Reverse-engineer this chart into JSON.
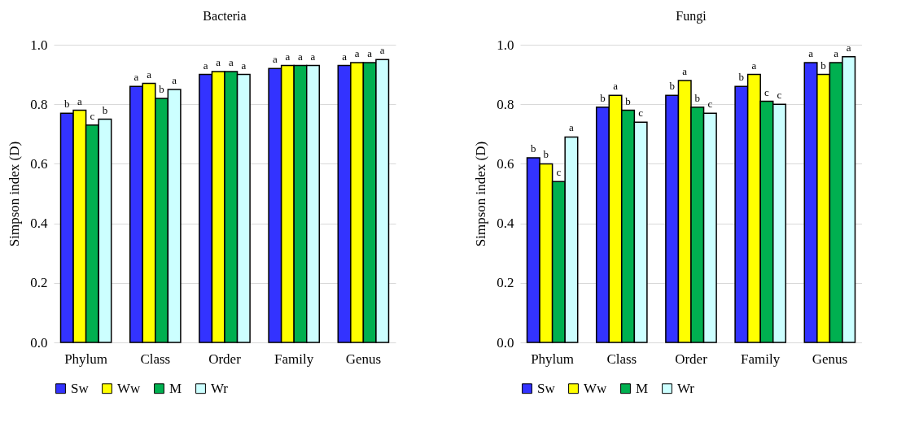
{
  "chart_data": [
    {
      "type": "bar",
      "title": "Bacteria",
      "ylabel": "Simpson index (D)",
      "categories": [
        "Phylum",
        "Class",
        "Order",
        "Family",
        "Genus"
      ],
      "series": [
        {
          "name": "Sw",
          "color": "#3333ff",
          "values": [
            0.77,
            0.86,
            0.9,
            0.92,
            0.93
          ],
          "value_labels": [
            "b",
            "a",
            "a",
            "a",
            "a"
          ]
        },
        {
          "name": "Ww",
          "color": "#ffff00",
          "values": [
            0.78,
            0.87,
            0.91,
            0.93,
            0.94
          ],
          "value_labels": [
            "a",
            "a",
            "a",
            "a",
            "a"
          ]
        },
        {
          "name": "M",
          "color": "#00b050",
          "values": [
            0.73,
            0.82,
            0.91,
            0.93,
            0.94
          ],
          "value_labels": [
            "c",
            "b",
            "a",
            "a",
            "a"
          ]
        },
        {
          "name": "Wr",
          "color": "#ccffff",
          "values": [
            0.75,
            0.85,
            0.9,
            0.93,
            0.95
          ],
          "value_labels": [
            "b",
            "a",
            "a",
            "a",
            "a"
          ]
        }
      ],
      "ylim": [
        0,
        1
      ],
      "yticks": [
        {
          "value": 0,
          "label": "0.0"
        },
        {
          "value": 0.2,
          "label": "0.2"
        },
        {
          "value": 0.4,
          "label": "0.4"
        },
        {
          "value": 0.6,
          "label": "0.6"
        },
        {
          "value": 0.8,
          "label": "0.8"
        },
        {
          "value": 1,
          "label": "1.0"
        }
      ],
      "grid": "y",
      "legend": "bottom"
    },
    {
      "type": "bar",
      "title": "Fungi",
      "ylabel": "Simpson index (D)",
      "categories": [
        "Phylum",
        "Class",
        "Order",
        "Family",
        "Genus"
      ],
      "series": [
        {
          "name": "Sw",
          "color": "#3333ff",
          "values": [
            0.62,
            0.79,
            0.83,
            0.86,
            0.94
          ],
          "value_labels": [
            "b",
            "b",
            "b",
            "b",
            "a"
          ]
        },
        {
          "name": "Ww",
          "color": "#ffff00",
          "values": [
            0.6,
            0.83,
            0.88,
            0.9,
            0.9
          ],
          "value_labels": [
            "b",
            "a",
            "a",
            "a",
            "b"
          ]
        },
        {
          "name": "M",
          "color": "#00b050",
          "values": [
            0.54,
            0.78,
            0.79,
            0.81,
            0.94
          ],
          "value_labels": [
            "c",
            "b",
            "b",
            "c",
            "a"
          ]
        },
        {
          "name": "Wr",
          "color": "#ccffff",
          "values": [
            0.69,
            0.74,
            0.77,
            0.8,
            0.96
          ],
          "value_labels": [
            "a",
            "c",
            "c",
            "c",
            "a"
          ]
        }
      ],
      "ylim": [
        0,
        1
      ],
      "yticks": [
        {
          "value": 0,
          "label": "0.0"
        },
        {
          "value": 0.2,
          "label": "0.2"
        },
        {
          "value": 0.4,
          "label": "0.4"
        },
        {
          "value": 0.6,
          "label": "0.6"
        },
        {
          "value": 0.8,
          "label": "0.8"
        },
        {
          "value": 1,
          "label": "1.0"
        }
      ],
      "grid": "y",
      "legend": "bottom"
    }
  ]
}
